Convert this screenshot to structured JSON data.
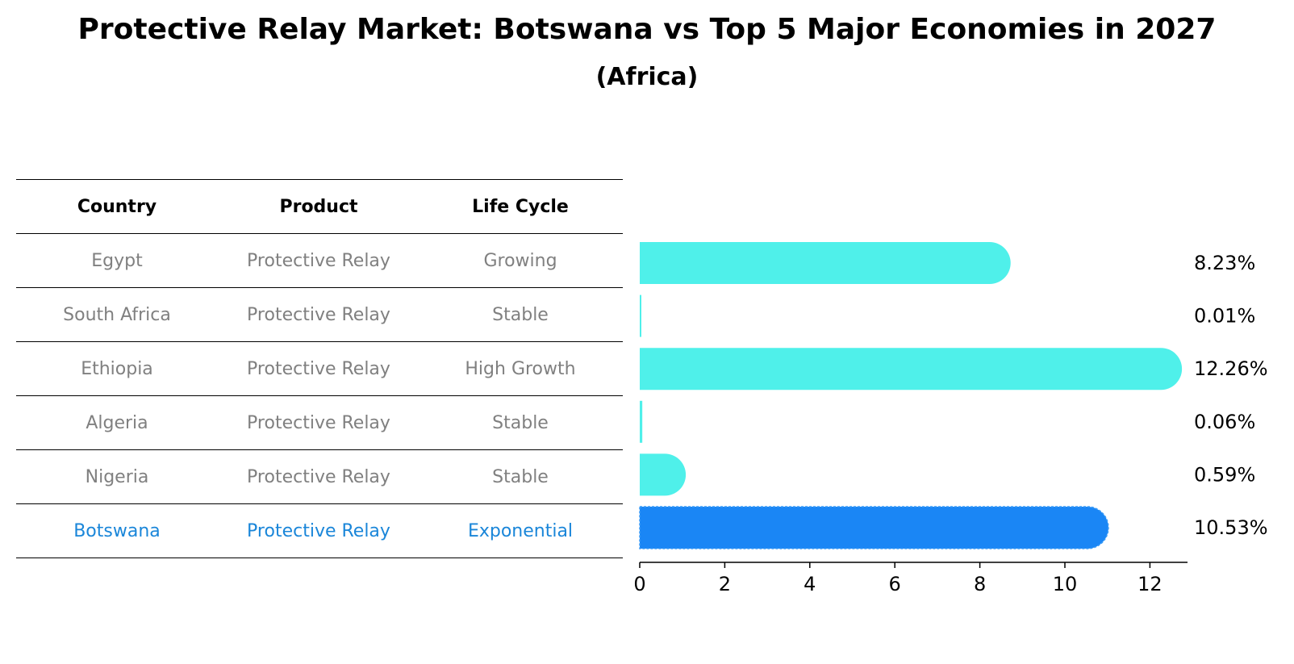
{
  "title": "Protective Relay Market: Botswana vs Top 5 Major Economies in 2027",
  "subtitle": "(Africa)",
  "table": {
    "headers": [
      "Country",
      "Product",
      "Life Cycle"
    ],
    "rows": [
      [
        "Egypt",
        "Protective Relay",
        "Growing"
      ],
      [
        "South Africa",
        "Protective Relay",
        "Stable"
      ],
      [
        "Ethiopia",
        "Protective Relay",
        "High Growth"
      ],
      [
        "Algeria",
        "Protective Relay",
        "Stable"
      ],
      [
        "Nigeria",
        "Protective Relay",
        "Stable"
      ],
      [
        "Botswana",
        "Protective Relay",
        "Exponential"
      ]
    ]
  },
  "chart_data": {
    "type": "bar",
    "orientation": "horizontal",
    "categories": [
      "Egypt",
      "South Africa",
      "Ethiopia",
      "Algeria",
      "Nigeria",
      "Botswana"
    ],
    "values": [
      8.23,
      0.01,
      12.26,
      0.06,
      0.59,
      10.53
    ],
    "data_labels": [
      "8.23%",
      "0.01%",
      "12.26%",
      "0.06%",
      "0.59%",
      "10.53%"
    ],
    "highlight": "Botswana",
    "xlim": [
      0,
      12.9
    ],
    "xticks": [
      0,
      2,
      4,
      6,
      8,
      10,
      12
    ],
    "colors": {
      "bar": "#4ff0ea",
      "highlight": "#1a86f5",
      "table_highlight": "#1a86d9"
    }
  }
}
